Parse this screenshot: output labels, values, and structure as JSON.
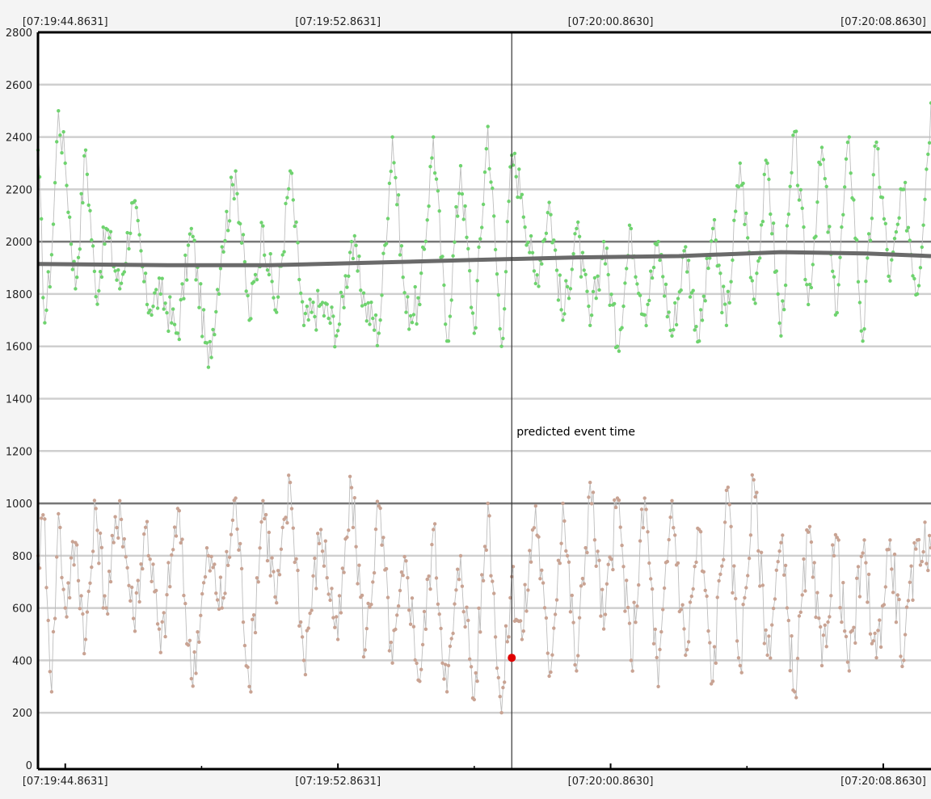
{
  "chart_data": {
    "type": "line",
    "x_tick_labels": [
      "[07:19:44.8631]",
      "[07:19:52.8631]",
      "[07:20:00.8630]",
      "[07:20:08.8630]"
    ],
    "y_ticks": [
      0,
      200,
      400,
      600,
      800,
      1000,
      1200,
      1400,
      1600,
      1800,
      2000,
      2200,
      2400,
      2600,
      2800
    ],
    "ylim": [
      0,
      2800
    ],
    "x_range_seconds": [
      -0.8,
      25.4
    ],
    "x_tick_positions_seconds": [
      0,
      8,
      16,
      24
    ],
    "grid": "horizontal",
    "reference_lines": [
      1000,
      2000
    ],
    "annotation": {
      "text": "predicted event time",
      "x": 13.1,
      "marker_y": 410,
      "marker_color": "#e00000"
    },
    "series": [
      {
        "name": "",
        "color": "#6fd36f",
        "line_color": "#bdbdbd",
        "keypoints": [
          [
            -0.8,
            2350
          ],
          [
            -0.6,
            1690
          ],
          [
            -0.4,
            1950
          ],
          [
            -0.2,
            2500
          ],
          [
            0,
            2300
          ],
          [
            0.3,
            1820
          ],
          [
            0.6,
            2350
          ],
          [
            0.9,
            1790
          ],
          [
            1.2,
            2050
          ],
          [
            1.6,
            1820
          ],
          [
            2.0,
            2150
          ],
          [
            2.4,
            1760
          ],
          [
            2.8,
            1800
          ],
          [
            3.3,
            1650
          ],
          [
            3.7,
            2050
          ],
          [
            4.2,
            1520
          ],
          [
            4.6,
            1980
          ],
          [
            5.0,
            2270
          ],
          [
            5.4,
            1700
          ],
          [
            5.8,
            2060
          ],
          [
            6.2,
            1730
          ],
          [
            6.6,
            2270
          ],
          [
            7.0,
            1680
          ],
          [
            7.5,
            1760
          ],
          [
            8.0,
            1660
          ],
          [
            8.4,
            2000
          ],
          [
            8.8,
            1760
          ],
          [
            9.2,
            1650
          ],
          [
            9.6,
            2400
          ],
          [
            10.0,
            1730
          ],
          [
            10.4,
            1760
          ],
          [
            10.8,
            2400
          ],
          [
            11.2,
            1620
          ],
          [
            11.6,
            2290
          ],
          [
            12.0,
            1650
          ],
          [
            12.4,
            2440
          ],
          [
            12.8,
            1600
          ],
          [
            13.1,
            2330
          ],
          [
            13.4,
            2180
          ],
          [
            13.8,
            1840
          ],
          [
            14.2,
            2150
          ],
          [
            14.6,
            1700
          ],
          [
            15.0,
            2050
          ],
          [
            15.4,
            1680
          ],
          [
            15.8,
            2000
          ],
          [
            16.2,
            1600
          ],
          [
            16.6,
            2050
          ],
          [
            17.0,
            1720
          ],
          [
            17.4,
            2000
          ],
          [
            17.8,
            1640
          ],
          [
            18.2,
            1980
          ],
          [
            18.6,
            1620
          ],
          [
            19.0,
            2050
          ],
          [
            19.4,
            1680
          ],
          [
            19.8,
            2300
          ],
          [
            20.2,
            1780
          ],
          [
            20.6,
            2300
          ],
          [
            21.0,
            1640
          ],
          [
            21.4,
            2420
          ],
          [
            21.8,
            1760
          ],
          [
            22.2,
            2360
          ],
          [
            22.6,
            1720
          ],
          [
            23.0,
            2400
          ],
          [
            23.4,
            1620
          ],
          [
            23.8,
            2380
          ],
          [
            24.2,
            1850
          ],
          [
            24.6,
            2200
          ],
          [
            25.0,
            1800
          ],
          [
            25.4,
            2530
          ]
        ]
      },
      {
        "name": "",
        "color": "#c9a393",
        "line_color": "#bdbdbd",
        "keypoints": [
          [
            -0.8,
            800
          ],
          [
            -0.6,
            940
          ],
          [
            -0.4,
            280
          ],
          [
            -0.2,
            960
          ],
          [
            0,
            600
          ],
          [
            0.3,
            850
          ],
          [
            0.6,
            480
          ],
          [
            0.9,
            980
          ],
          [
            1.2,
            600
          ],
          [
            1.6,
            1010
          ],
          [
            2.0,
            560
          ],
          [
            2.4,
            930
          ],
          [
            2.8,
            430
          ],
          [
            3.3,
            980
          ],
          [
            3.7,
            330
          ],
          [
            4.2,
            800
          ],
          [
            4.6,
            600
          ],
          [
            5.0,
            1020
          ],
          [
            5.4,
            300
          ],
          [
            5.8,
            1010
          ],
          [
            6.2,
            620
          ],
          [
            6.6,
            1080
          ],
          [
            7.0,
            400
          ],
          [
            7.5,
            900
          ],
          [
            8.0,
            480
          ],
          [
            8.4,
            1060
          ],
          [
            8.8,
            440
          ],
          [
            9.2,
            990
          ],
          [
            9.6,
            390
          ],
          [
            10.0,
            780
          ],
          [
            10.4,
            320
          ],
          [
            10.8,
            900
          ],
          [
            11.2,
            280
          ],
          [
            11.6,
            800
          ],
          [
            12.0,
            250
          ],
          [
            12.4,
            1000
          ],
          [
            12.8,
            200
          ],
          [
            13.1,
            720
          ],
          [
            13.4,
            480
          ],
          [
            13.8,
            990
          ],
          [
            14.2,
            340
          ],
          [
            14.6,
            1000
          ],
          [
            15.0,
            360
          ],
          [
            15.4,
            1080
          ],
          [
            15.8,
            520
          ],
          [
            16.2,
            1020
          ],
          [
            16.6,
            400
          ],
          [
            17.0,
            1020
          ],
          [
            17.4,
            300
          ],
          [
            17.8,
            1010
          ],
          [
            18.2,
            420
          ],
          [
            18.6,
            900
          ],
          [
            19.0,
            320
          ],
          [
            19.4,
            1050
          ],
          [
            19.8,
            380
          ],
          [
            20.2,
            1090
          ],
          [
            20.6,
            420
          ],
          [
            21.0,
            850
          ],
          [
            21.4,
            280
          ],
          [
            21.8,
            890
          ],
          [
            22.2,
            380
          ],
          [
            22.6,
            880
          ],
          [
            23.0,
            360
          ],
          [
            23.4,
            810
          ],
          [
            23.8,
            410
          ],
          [
            24.2,
            860
          ],
          [
            24.6,
            400
          ],
          [
            25.0,
            860
          ],
          [
            25.4,
            830
          ]
        ]
      },
      {
        "name": "",
        "color": "#6a6a6a",
        "style": "thick-trend",
        "keypoints": [
          [
            -0.8,
            1915
          ],
          [
            3.0,
            1910
          ],
          [
            6.0,
            1910
          ],
          [
            9.0,
            1920
          ],
          [
            12.0,
            1930
          ],
          [
            15.0,
            1940
          ],
          [
            18.0,
            1945
          ],
          [
            21.0,
            1960
          ],
          [
            23.5,
            1955
          ],
          [
            25.4,
            1945
          ]
        ]
      }
    ]
  }
}
